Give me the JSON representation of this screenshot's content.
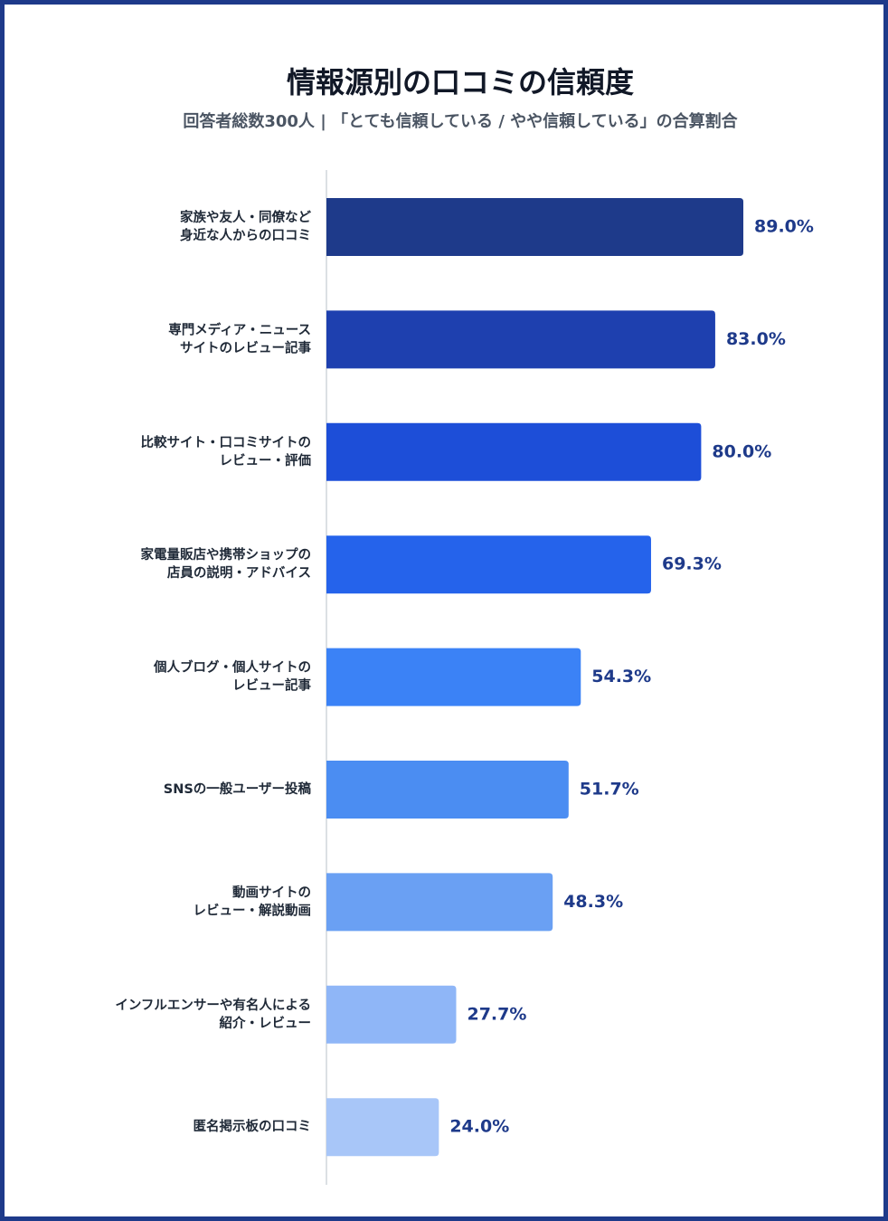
{
  "chart_data": {
    "type": "barh",
    "title": "情報源別の口コミの信頼度",
    "subtitle": "回答者総数300人 | 「とても信頼している / やや信頼している」の合算割合",
    "categories": [
      [
        "家族や友人・同僚など",
        "身近な人からの口コミ"
      ],
      [
        "専門メディア・ニュース",
        "サイトのレビュー記事"
      ],
      [
        "比較サイト・口コミサイトの",
        "レビュー・評価"
      ],
      [
        "家電量販店や携帯ショップの",
        "店員の説明・アドバイス"
      ],
      [
        "個人ブログ・個人サイトの",
        "レビュー記事"
      ],
      [
        "SNSの一般ユーザー投稿"
      ],
      [
        "動画サイトの",
        "レビュー・解説動画"
      ],
      [
        "インフルエンサーや有名人による",
        "紹介・レビュー"
      ],
      [
        "匿名掲示板の口コミ"
      ]
    ],
    "values": [
      89.0,
      83.0,
      80.0,
      69.3,
      54.3,
      51.7,
      48.3,
      27.7,
      24.0
    ],
    "value_labels": [
      "89.0%",
      "83.0%",
      "80.0%",
      "69.3%",
      "54.3%",
      "51.7%",
      "48.3%",
      "27.7%",
      "24.0%"
    ],
    "colors": [
      "#1e3a8a",
      "#1e40af",
      "#1d4ed8",
      "#2563eb",
      "#3b82f6",
      "#4b8df2",
      "#6aa0f3",
      "#8fb6f7",
      "#a8c6f8"
    ],
    "xlim": [
      0,
      100
    ]
  }
}
